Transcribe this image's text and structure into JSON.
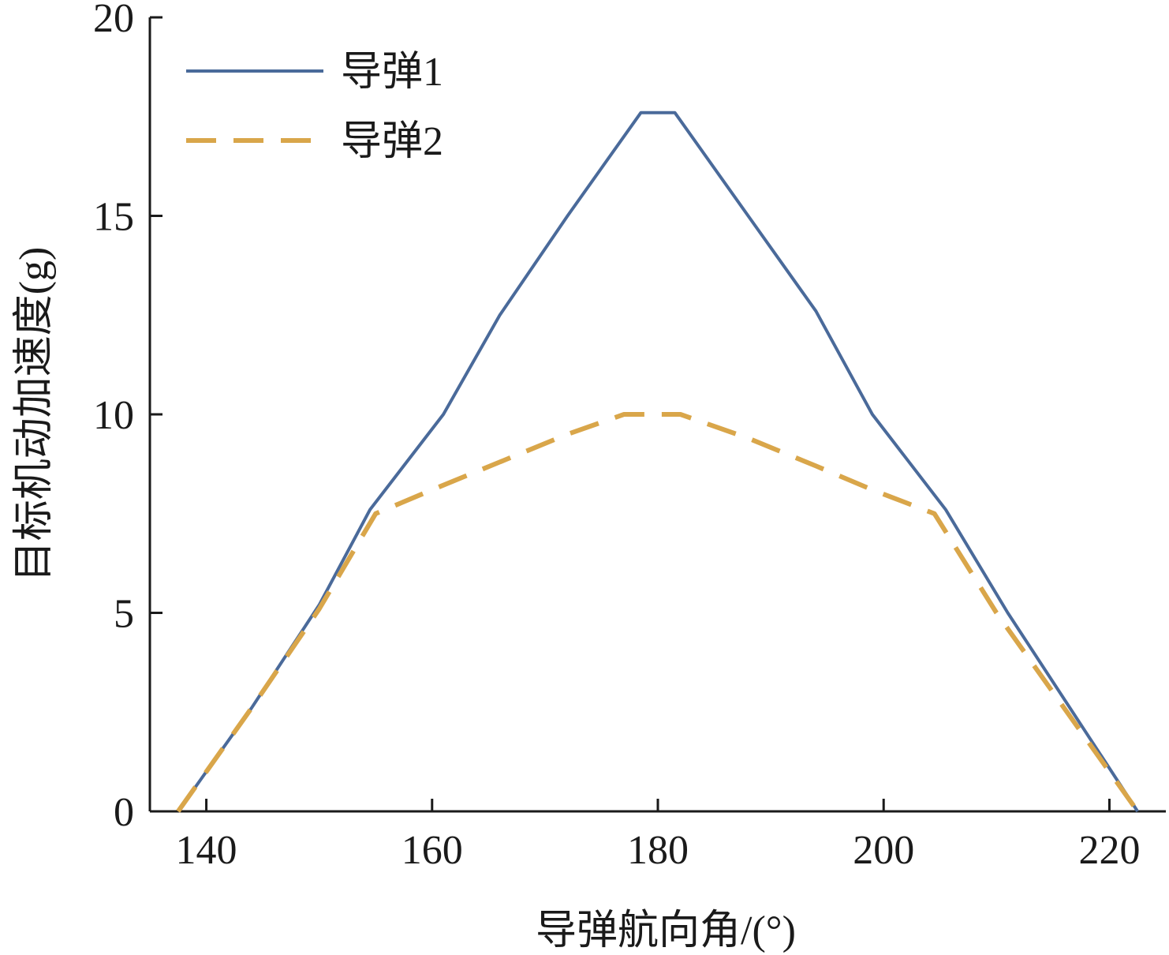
{
  "chart_data": {
    "type": "line",
    "xlabel": "导弹航向角/(°)",
    "ylabel": "目标机动加速度(g)",
    "xlim": [
      135,
      225
    ],
    "ylim": [
      0,
      20
    ],
    "xticks": [
      140,
      160,
      180,
      200,
      220
    ],
    "yticks": [
      0,
      5,
      10,
      15,
      20
    ],
    "grid": false,
    "legend_position": "top-left",
    "series": [
      {
        "name": "导弹1",
        "color": "#4a6a9a",
        "style": "solid",
        "x": [
          137.5,
          144,
          150,
          154.5,
          161,
          166,
          172,
          178.5,
          181.5,
          188,
          194,
          199,
          205.5,
          211,
          222.5
        ],
        "y": [
          0,
          2.6,
          5.2,
          7.6,
          10,
          12.5,
          15,
          17.6,
          17.6,
          15,
          12.6,
          10,
          7.6,
          5,
          0
        ]
      },
      {
        "name": "导弹2",
        "color": "#d9a64a",
        "style": "dashed",
        "x": [
          137.5,
          144,
          150,
          155,
          160,
          166,
          172,
          177,
          182,
          188,
          194,
          199,
          204.5,
          210,
          222.5
        ],
        "y": [
          0,
          2.6,
          5.1,
          7.5,
          8.1,
          8.8,
          9.5,
          10,
          10,
          9.4,
          8.7,
          8.1,
          7.5,
          5,
          0
        ]
      }
    ]
  }
}
